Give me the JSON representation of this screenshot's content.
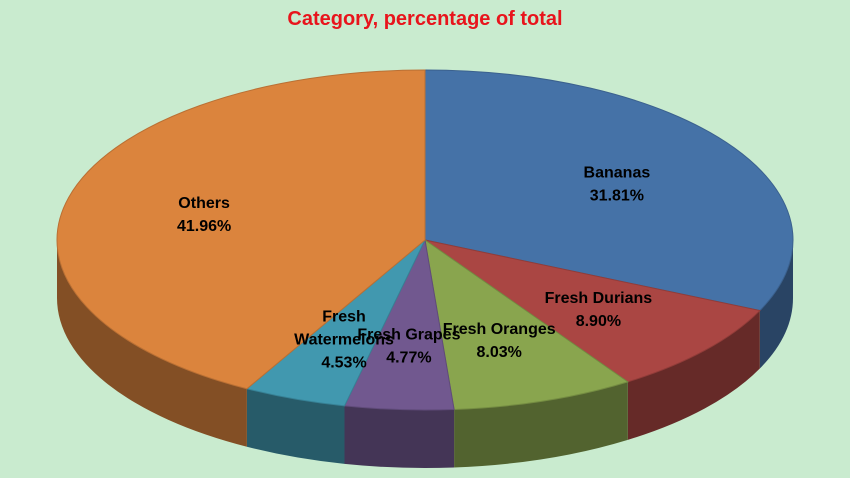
{
  "chart_data": {
    "type": "pie",
    "subtitle": "Category, percentage of total",
    "subtitle_color": "#e8141c",
    "background_color": "#c9ebcf",
    "slices": [
      {
        "label": [
          "Bananas"
        ],
        "value_text": "31.81%",
        "value": 31.81,
        "color": "#4572a7"
      },
      {
        "label": [
          "Fresh Durians"
        ],
        "value_text": "8.90%",
        "value": 8.9,
        "color": "#aa4643"
      },
      {
        "label": [
          "Fresh Oranges"
        ],
        "value_text": "8.03%",
        "value": 8.03,
        "color": "#89a54e"
      },
      {
        "label": [
          "Fresh Grapes"
        ],
        "value_text": "4.77%",
        "value": 4.77,
        "color": "#71588f"
      },
      {
        "label": [
          "Fresh",
          "Watermelons"
        ],
        "value_text": "4.53%",
        "value": 4.53,
        "color": "#4198af"
      },
      {
        "label": [
          "Others"
        ],
        "value_text": "41.96%",
        "value": 41.96,
        "color": "#db843d"
      }
    ]
  }
}
